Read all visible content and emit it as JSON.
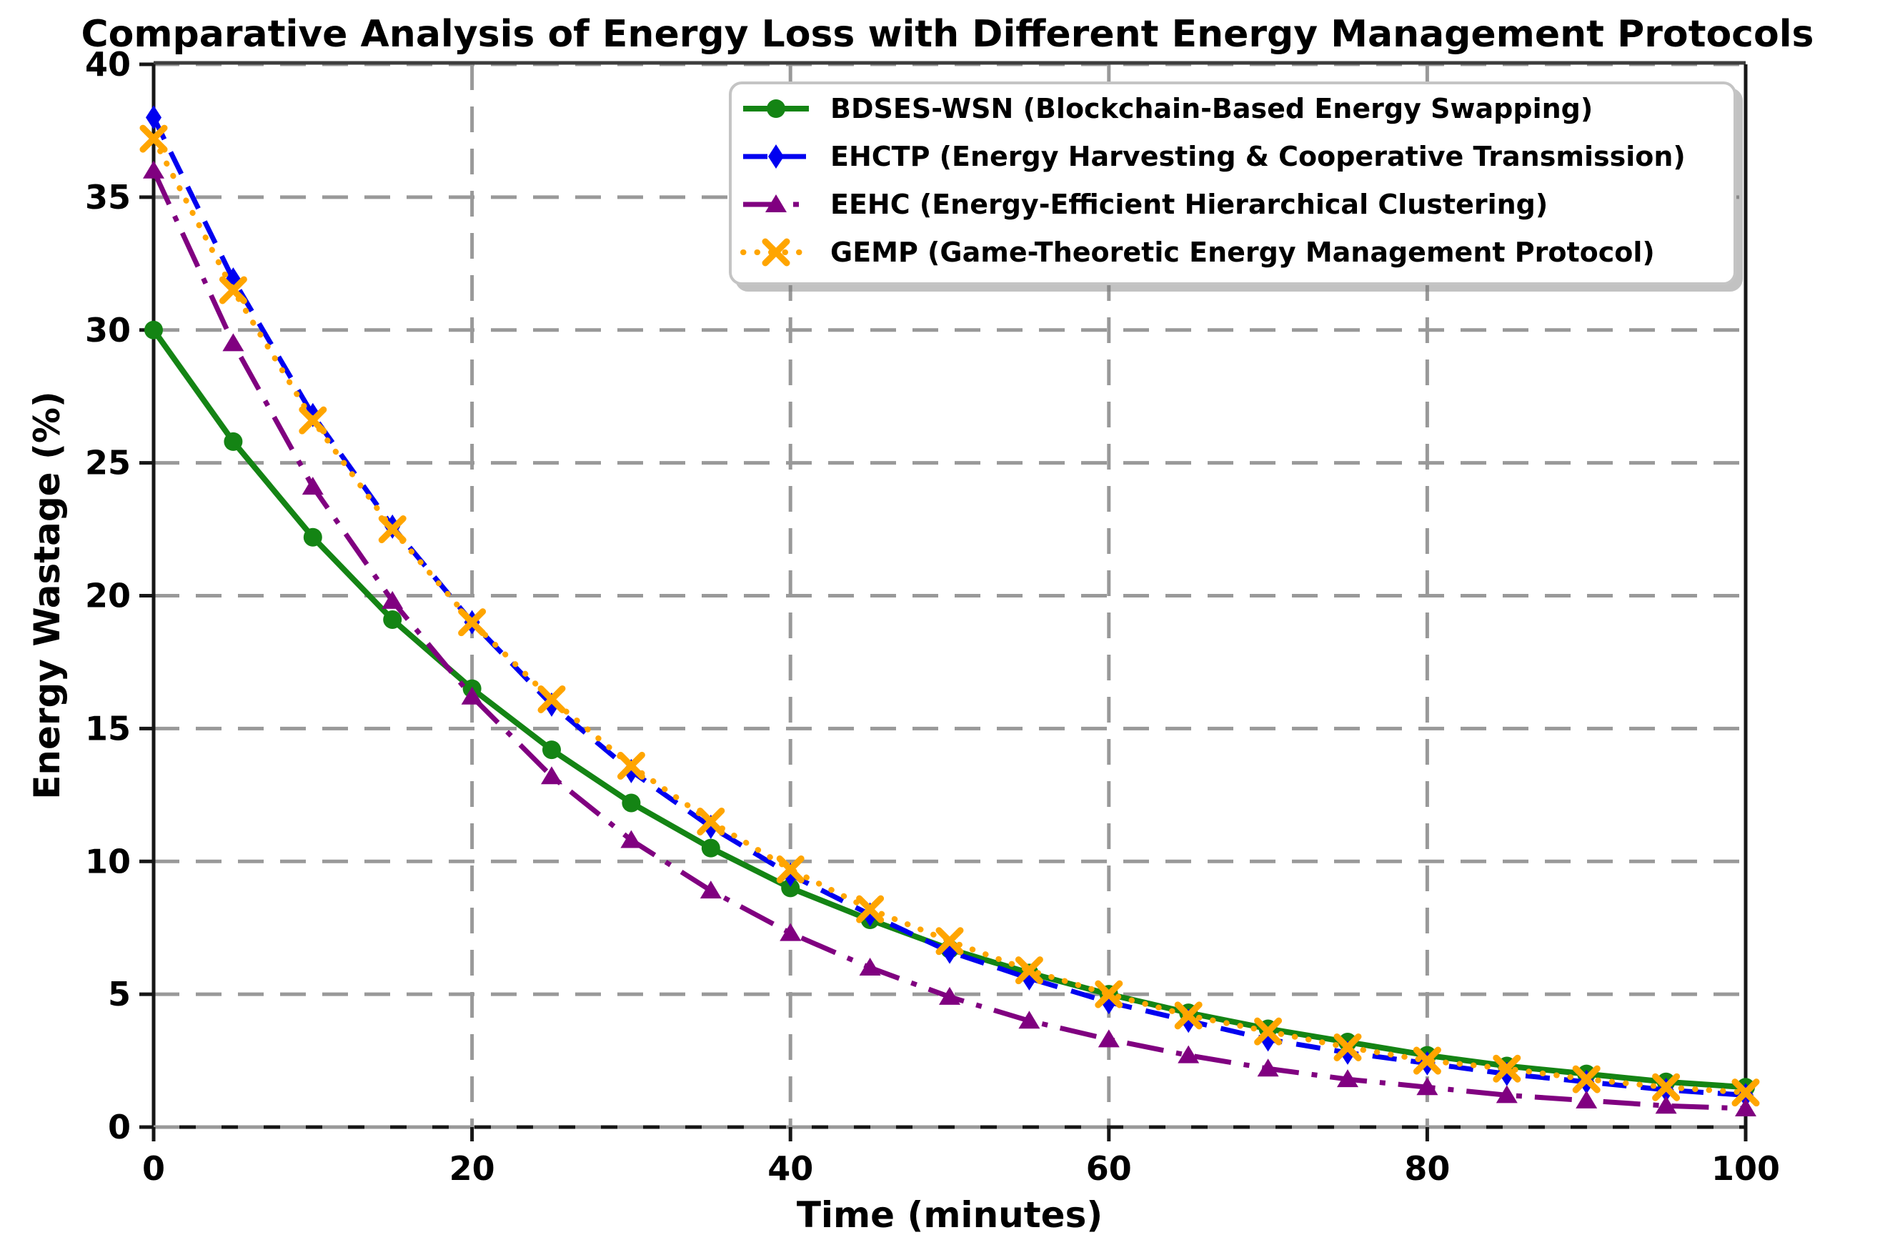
{
  "chart_data": {
    "type": "line",
    "title": "Comparative Analysis of Energy Loss with Different Energy Management Protocols",
    "xlabel": "Time (minutes)",
    "ylabel": "Energy Wastage (%)",
    "xlim": [
      0,
      100
    ],
    "ylim": [
      0,
      40
    ],
    "xticks": [
      0,
      20,
      40,
      60,
      80,
      100
    ],
    "yticks": [
      0,
      5,
      10,
      15,
      20,
      25,
      30,
      35,
      40
    ],
    "grid": true,
    "grid_style": "dashed",
    "grid_color": "#999999",
    "legend_position": "upper right",
    "x": [
      0,
      5,
      10,
      15,
      20,
      25,
      30,
      35,
      40,
      45,
      50,
      55,
      60,
      65,
      70,
      75,
      80,
      85,
      90,
      95,
      100
    ],
    "series": [
      {
        "name": "BDSES-WSN (Blockchain-Based Energy Swapping)",
        "color": "#148414",
        "line_style": "solid",
        "marker": "circle",
        "values": [
          30.0,
          25.8,
          22.2,
          19.1,
          16.5,
          14.2,
          12.2,
          10.5,
          9.0,
          7.8,
          6.7,
          5.8,
          5.0,
          4.3,
          3.7,
          3.2,
          2.7,
          2.3,
          2.0,
          1.7,
          1.5
        ]
      },
      {
        "name": "EHCTP (Energy Harvesting & Cooperative Transmission)",
        "color": "#0000f0",
        "line_style": "dashed",
        "marker": "diamond",
        "values": [
          38.0,
          31.9,
          26.8,
          22.6,
          19.0,
          15.9,
          13.4,
          11.3,
          9.5,
          8.0,
          6.6,
          5.6,
          4.7,
          4.0,
          3.3,
          2.8,
          2.4,
          2.0,
          1.7,
          1.4,
          1.2
        ]
      },
      {
        "name": "EEHC (Energy-Efficient Hierarchical Clustering)",
        "color": "#800080",
        "line_style": "dashdot",
        "marker": "triangle",
        "values": [
          36.0,
          29.5,
          24.1,
          19.8,
          16.2,
          13.2,
          10.8,
          8.9,
          7.3,
          6.0,
          4.9,
          4.0,
          3.3,
          2.7,
          2.2,
          1.8,
          1.5,
          1.2,
          1.0,
          0.8,
          0.7
        ]
      },
      {
        "name": "GEMP (Game-Theoretic Energy Management Protocol)",
        "color": "#ffa500",
        "line_style": "dotted",
        "marker": "x",
        "values": [
          37.2,
          31.5,
          26.6,
          22.5,
          19.0,
          16.1,
          13.6,
          11.5,
          9.7,
          8.2,
          7.0,
          5.9,
          5.0,
          4.2,
          3.6,
          3.0,
          2.5,
          2.2,
          1.8,
          1.5,
          1.3
        ]
      }
    ]
  }
}
